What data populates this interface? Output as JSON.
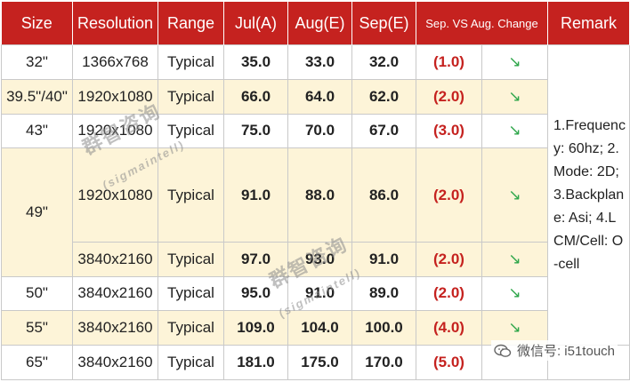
{
  "colors": {
    "header": "#c5221f",
    "band": "#fdf4d8",
    "change": "#c5221f",
    "arrow": "#2ea64a"
  },
  "headers": {
    "size": "Size",
    "resolution": "Resolution",
    "range": "Range",
    "jul": "Jul(A)",
    "aug": "Aug(E)",
    "sep": "Sep(E)",
    "change": "Sep. VS Aug. Change",
    "remark": "Remark"
  },
  "rows": [
    {
      "size": "32\"",
      "resolution": "1366x768",
      "range": "Typical",
      "jul": "35.0",
      "aug": "33.0",
      "sep": "32.0",
      "change": "(1.0)",
      "arrow": "↘"
    },
    {
      "size": "39.5\"/40\"",
      "resolution": "1920x1080",
      "range": "Typical",
      "jul": "66.0",
      "aug": "64.0",
      "sep": "62.0",
      "change": "(2.0)",
      "arrow": "↘"
    },
    {
      "size": "43\"",
      "resolution": "1920x1080",
      "range": "Typical",
      "jul": "75.0",
      "aug": "70.0",
      "sep": "67.0",
      "change": "(3.0)",
      "arrow": "↘"
    },
    {
      "size": "49\"",
      "resolution": "1920x1080",
      "range": "Typical",
      "jul": "91.0",
      "aug": "88.0",
      "sep": "86.0",
      "change": "(2.0)",
      "arrow": "↘"
    },
    {
      "size": "",
      "resolution": "3840x2160",
      "range": "Typical",
      "jul": "97.0",
      "aug": "93.0",
      "sep": "91.0",
      "change": "(2.0)",
      "arrow": "↘"
    },
    {
      "size": "50\"",
      "resolution": "3840x2160",
      "range": "Typical",
      "jul": "95.0",
      "aug": "91.0",
      "sep": "89.0",
      "change": "(2.0)",
      "arrow": "↘"
    },
    {
      "size": "55\"",
      "resolution": "3840x2160",
      "range": "Typical",
      "jul": "109.0",
      "aug": "104.0",
      "sep": "100.0",
      "change": "(4.0)",
      "arrow": "↘"
    },
    {
      "size": "65\"",
      "resolution": "3840x2160",
      "range": "Typical",
      "jul": "181.0",
      "aug": "175.0",
      "sep": "170.0",
      "change": "(5.0)",
      "arrow": ""
    }
  ],
  "remark": "1.Frequency: 60hz; 2.Mode: 2D; 3.Backplane: Asi; 4.LCM/Cell: O-cell",
  "watermark": {
    "cn": "群智咨询",
    "en": "(sigmaintell)"
  },
  "wechat": {
    "label": "微信号: i51touch",
    "icon": "wechat-logo-icon"
  }
}
